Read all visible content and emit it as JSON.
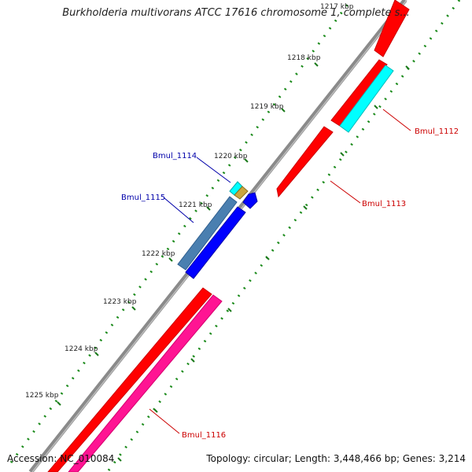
{
  "title": "Burkholderia multivorans ATCC 17616 chromosome 1, complete s...",
  "footer": {
    "accession": "Accession: NC_010084",
    "summary": "Topology: circular; Length: 3,448,466 bp; Genes: 3,214"
  },
  "scale_labels": [
    "1217 kbp",
    "1218 kbp",
    "1219 kbp",
    "1220 kbp",
    "1221 kbp",
    "1222 kbp",
    "1223 kbp",
    "1224 kbp",
    "1225 kbp"
  ],
  "genes": [
    {
      "name": "Bmul_1112",
      "color": "#cc0000"
    },
    {
      "name": "Bmul_1113",
      "color": "#cc0000"
    },
    {
      "name": "Bmul_1114",
      "color": "#0000aa"
    },
    {
      "name": "Bmul_1115",
      "color": "#0000aa"
    },
    {
      "name": "Bmul_1116",
      "color": "#cc0000"
    }
  ],
  "colors": {
    "backbone": "#8a8a8a",
    "cds_forward": "#ff0000",
    "cds_reverse": "#0000ff",
    "rna_forward": "#00ffff",
    "rna_reverse": "#4a7fb0",
    "pink": "#ff1493",
    "tick": "#1a7a1a"
  }
}
